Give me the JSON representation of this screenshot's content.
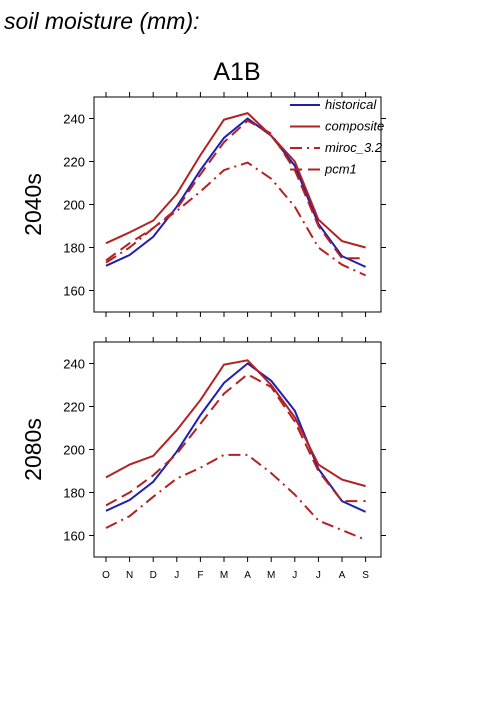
{
  "header": {
    "title": "soil moisture (mm):",
    "scenario": "A1B"
  },
  "chart_data": [
    {
      "type": "line",
      "period": "2040s",
      "categories": [
        "O",
        "N",
        "D",
        "J",
        "F",
        "M",
        "A",
        "M",
        "J",
        "J",
        "A",
        "S"
      ],
      "ylim": [
        150,
        250
      ],
      "yticks": [
        160,
        180,
        200,
        220,
        240
      ],
      "grid": false,
      "legend_position": "top-right",
      "series": [
        {
          "name": "historical",
          "color": "#1f1fb0",
          "dash": "solid",
          "values": [
            171.5,
            176.5,
            185,
            199,
            216,
            231,
            240,
            232,
            218,
            191,
            176,
            171
          ]
        },
        {
          "name": "composite",
          "color": "#b22222",
          "dash": "solid",
          "values": [
            182,
            187,
            192.5,
            205,
            223,
            239.5,
            242.5,
            232,
            220,
            193,
            183,
            180
          ]
        },
        {
          "name": "miroc_3.2",
          "color": "#b22222",
          "dash": "dashdot",
          "values": [
            173,
            180,
            189,
            197,
            206,
            216,
            219.5,
            212,
            199,
            180,
            172,
            167
          ]
        },
        {
          "name": "pcm1",
          "color": "#b22222",
          "dash": "dashed",
          "values": [
            174,
            182,
            189,
            198,
            214,
            229,
            239,
            233,
            216,
            190,
            175,
            175
          ]
        }
      ]
    },
    {
      "type": "line",
      "period": "2080s",
      "categories": [
        "O",
        "N",
        "D",
        "J",
        "F",
        "M",
        "A",
        "M",
        "J",
        "J",
        "A",
        "S"
      ],
      "ylim": [
        150,
        250
      ],
      "yticks": [
        160,
        180,
        200,
        220,
        240
      ],
      "grid": false,
      "series": [
        {
          "name": "historical",
          "color": "#1f1fb0",
          "dash": "solid",
          "values": [
            171.5,
            176.5,
            185,
            199,
            216,
            231,
            240,
            232,
            218,
            191,
            176,
            171
          ]
        },
        {
          "name": "composite",
          "color": "#b22222",
          "dash": "solid",
          "values": [
            187,
            193,
            197,
            209,
            223,
            239.5,
            241.5,
            230,
            215,
            193,
            186,
            183
          ]
        },
        {
          "name": "miroc_3.2",
          "color": "#b22222",
          "dash": "dashdot",
          "values": [
            163.5,
            169,
            178,
            186.5,
            191.5,
            197.5,
            197.5,
            189,
            179,
            167,
            162.5,
            158
          ]
        },
        {
          "name": "pcm1",
          "color": "#b22222",
          "dash": "dashed",
          "values": [
            174,
            180,
            188,
            198,
            212,
            226,
            235,
            229,
            213,
            190,
            176,
            176
          ]
        }
      ]
    }
  ]
}
